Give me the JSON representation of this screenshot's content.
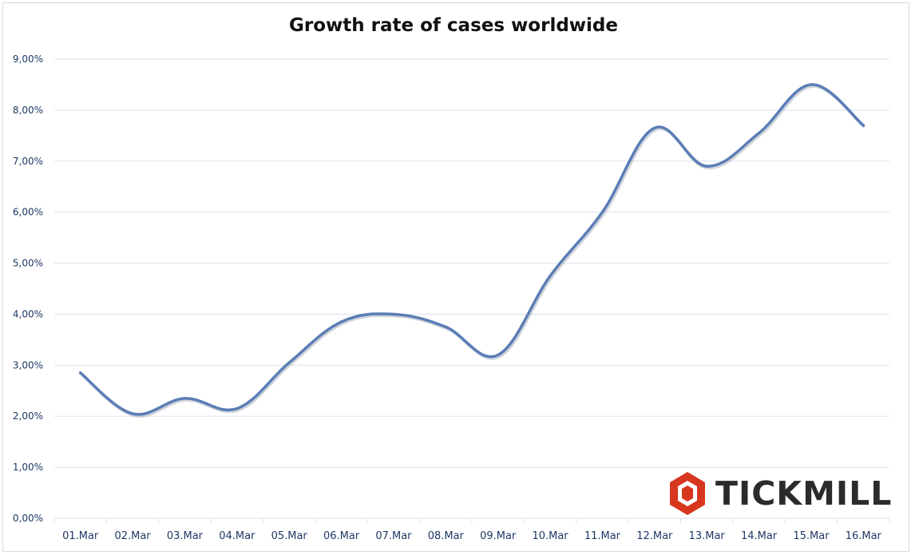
{
  "colors": {
    "line": "#5b7db6",
    "grid": "#dae3f0",
    "axis_text": "#1f3864",
    "logo_red": "#d7361f",
    "logo_text": "#2b2b2b"
  },
  "logo": {
    "text": "TICKMILL",
    "icon": "hexagon-logo-icon"
  },
  "chart_data": {
    "type": "line",
    "title": "Growth rate of cases worldwide",
    "xlabel": "",
    "ylabel": "",
    "categories": [
      "01.Mar",
      "02.Mar",
      "03.Mar",
      "04.Mar",
      "05.Mar",
      "06.Mar",
      "07.Mar",
      "08.Mar",
      "09.Mar",
      "10.Mar",
      "11.Mar",
      "12.Mar",
      "13.Mar",
      "14.Mar",
      "15.Mar",
      "16.Mar"
    ],
    "series": [
      {
        "values": [
          2.85,
          2.05,
          2.35,
          2.15,
          3.05,
          3.85,
          4.0,
          3.75,
          3.2,
          4.75,
          6.0,
          7.65,
          6.9,
          7.55,
          8.5,
          7.7
        ]
      }
    ],
    "y_ticks": [
      "0,00%",
      "1,00%",
      "2,00%",
      "3,00%",
      "4,00%",
      "5,00%",
      "6,00%",
      "7,00%",
      "8,00%",
      "9,00%"
    ],
    "ylim": [
      0,
      9
    ],
    "grid": true,
    "smooth": true,
    "legend": "none"
  }
}
